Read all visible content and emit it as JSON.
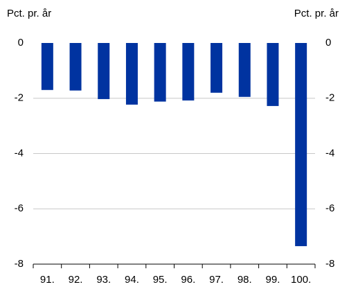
{
  "chart_data": {
    "type": "bar",
    "ylabel": "Pct. pr. år",
    "y2label": "Pct. pr. år",
    "categories": [
      "91.",
      "92.",
      "93.",
      "94.",
      "95.",
      "96.",
      "97.",
      "98.",
      "99.",
      "100."
    ],
    "values": [
      -1.7,
      -1.72,
      -2.03,
      -2.23,
      -2.12,
      -2.08,
      -1.8,
      -1.95,
      -2.28,
      -7.35
    ],
    "color": "#0033a0",
    "ylim": [
      -8,
      0
    ],
    "yticks": [
      0,
      -2,
      -4,
      -6,
      -8
    ],
    "y2lim": [
      -8,
      0
    ],
    "y2ticks": [
      0,
      -2,
      -4,
      -6,
      -8
    ],
    "grid": true
  }
}
